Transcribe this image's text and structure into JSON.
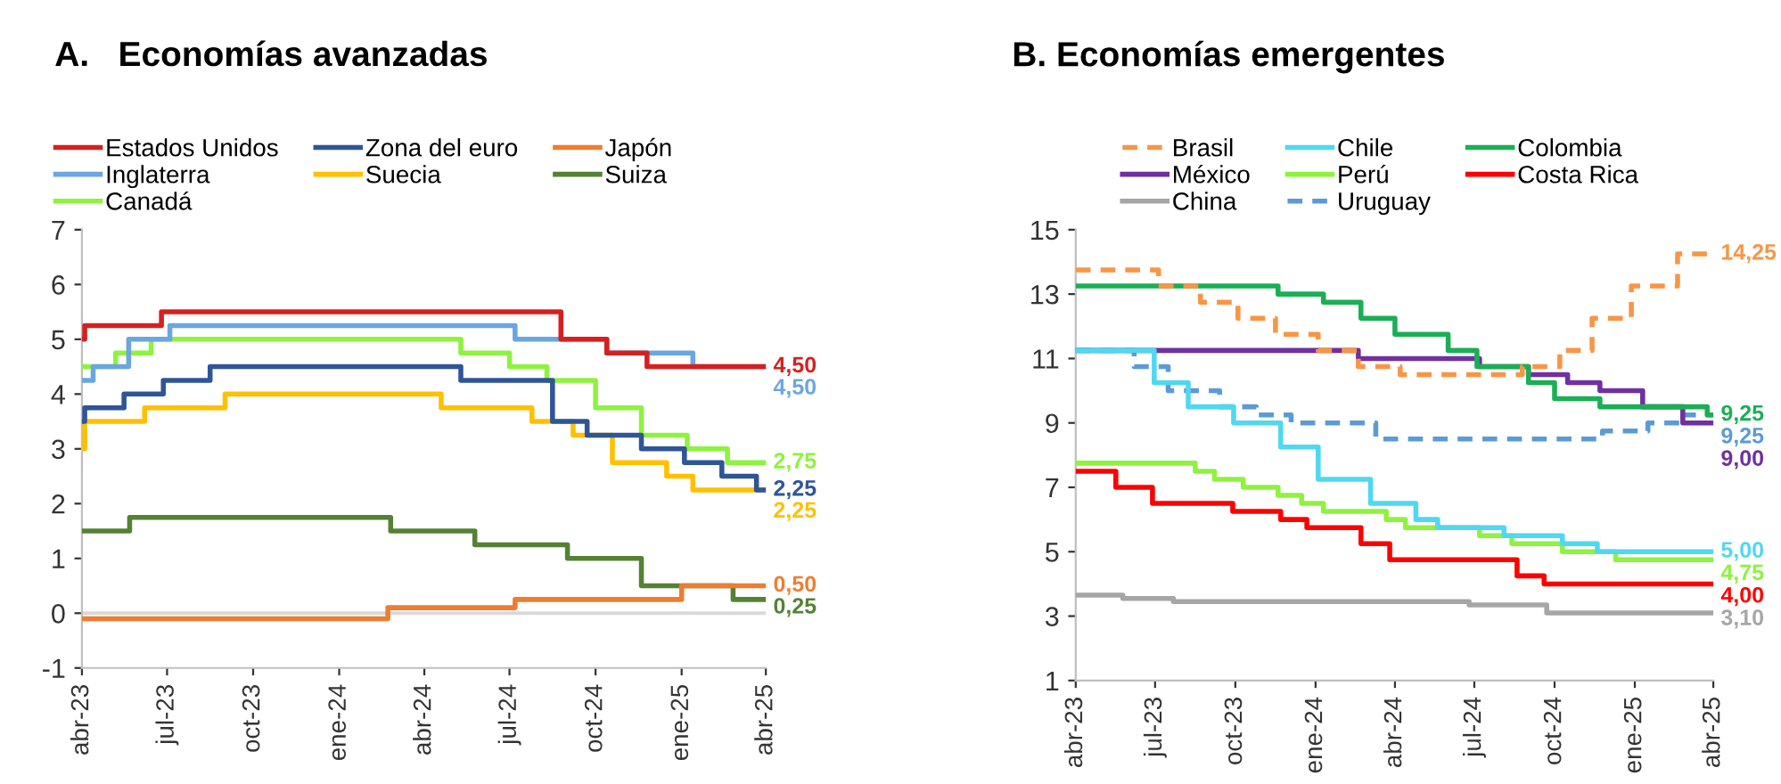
{
  "chart_data": [
    {
      "type": "step",
      "title": "A.   Economías avanzadas",
      "legend": "top",
      "grid": false,
      "ylim": [
        -1,
        7
      ],
      "yticks": [
        -1,
        0,
        1,
        2,
        3,
        4,
        5,
        6,
        7
      ],
      "xlim": [
        "2023-04-01",
        "2025-04-01"
      ],
      "xticks": [
        {
          "value": "2023-04-01",
          "label": "abr-23"
        },
        {
          "value": "2023-07-01",
          "label": "jul-23"
        },
        {
          "value": "2023-10-01",
          "label": "oct-23"
        },
        {
          "value": "2024-01-01",
          "label": "ene-24"
        },
        {
          "value": "2024-04-01",
          "label": "abr-24"
        },
        {
          "value": "2024-07-01",
          "label": "jul-24"
        },
        {
          "value": "2024-10-01",
          "label": "oct-24"
        },
        {
          "value": "2025-01-01",
          "label": "ene-25"
        },
        {
          "value": "2025-04-01",
          "label": "abr-25"
        }
      ],
      "ref_lines": [
        {
          "axis": "y",
          "value": 0,
          "color": "#d9d9d9"
        }
      ],
      "series": [
        {
          "name": "Estados Unidos",
          "color": "#d62020",
          "x": [
            "2023-04-01",
            "2023-04-04",
            "2023-06-25",
            "2024-08-25",
            "2024-10-13",
            "2024-11-25",
            "2025-04-01"
          ],
          "values": [
            5.0,
            5.25,
            5.5,
            5.0,
            4.75,
            4.5,
            4.5
          ],
          "value_labels": [
            null,
            null,
            null,
            null,
            null,
            null,
            "4,50"
          ]
        },
        {
          "name": "Zona del euro",
          "color": "#2f5597",
          "x": [
            "2023-04-01",
            "2023-04-04",
            "2023-05-16",
            "2023-06-27",
            "2023-08-16",
            "2024-05-10",
            "2024-08-16",
            "2024-09-22",
            "2024-11-19",
            "2025-01-04",
            "2025-02-13",
            "2025-03-22",
            "2025-04-01"
          ],
          "values": [
            3.5,
            3.75,
            4.0,
            4.25,
            4.5,
            4.25,
            3.5,
            3.25,
            3.0,
            2.75,
            2.5,
            2.25,
            2.25
          ],
          "value_labels": [
            null,
            null,
            null,
            null,
            null,
            null,
            null,
            null,
            null,
            null,
            null,
            null,
            "2,25"
          ]
        },
        {
          "name": "Japón",
          "color": "#ed7d31",
          "x": [
            "2023-04-01",
            "2024-02-22",
            "2024-07-07",
            "2025-01-01",
            "2025-04-01"
          ],
          "values": [
            -0.1,
            0.1,
            0.25,
            0.5,
            0.5
          ],
          "value_labels": [
            null,
            null,
            null,
            null,
            "0,50"
          ]
        },
        {
          "name": "Inglaterra",
          "color": "#6aa6e0",
          "x": [
            "2023-04-01",
            "2023-04-13",
            "2023-05-21",
            "2023-07-04",
            "2024-07-07",
            "2024-10-13",
            "2025-01-13",
            "2025-04-01"
          ],
          "values": [
            4.25,
            4.5,
            5.0,
            5.25,
            5.0,
            4.75,
            4.5,
            4.5
          ],
          "value_labels": [
            null,
            null,
            null,
            null,
            null,
            null,
            null,
            "4,50"
          ]
        },
        {
          "name": "Suecia",
          "color": "#ffc000",
          "x": [
            "2023-04-01",
            "2023-04-04",
            "2023-06-07",
            "2023-09-01",
            "2024-04-19",
            "2024-07-25",
            "2024-09-07",
            "2024-10-19",
            "2024-12-16",
            "2025-01-13",
            "2025-04-01"
          ],
          "values": [
            3.0,
            3.5,
            3.75,
            4.0,
            3.75,
            3.5,
            3.25,
            2.75,
            2.5,
            2.25,
            2.25
          ],
          "value_labels": [
            null,
            null,
            null,
            null,
            null,
            null,
            null,
            null,
            null,
            null,
            "2,25"
          ]
        },
        {
          "name": "Suiza",
          "color": "#548235",
          "x": [
            "2023-04-01",
            "2023-05-22",
            "2024-02-25",
            "2024-05-25",
            "2024-09-01",
            "2024-11-19",
            "2025-02-25",
            "2025-04-01"
          ],
          "values": [
            1.5,
            1.75,
            1.5,
            1.25,
            1.0,
            0.5,
            0.25,
            0.25
          ],
          "value_labels": [
            null,
            null,
            null,
            null,
            null,
            null,
            null,
            "0,25"
          ]
        },
        {
          "name": "Canadá",
          "color": "#8ef23f",
          "x": [
            "2023-04-01",
            "2023-05-07",
            "2023-06-14",
            "2024-05-10",
            "2024-07-01",
            "2024-08-10",
            "2024-10-01",
            "2024-11-19",
            "2025-01-07",
            "2025-02-19",
            "2025-04-01"
          ],
          "values": [
            4.5,
            4.75,
            5.0,
            4.75,
            4.5,
            4.25,
            3.75,
            3.25,
            3.0,
            2.75,
            2.75
          ],
          "value_labels": [
            null,
            null,
            null,
            null,
            null,
            null,
            null,
            null,
            null,
            null,
            "2,75"
          ]
        }
      ]
    },
    {
      "type": "step",
      "title": "B. Economías emergentes",
      "legend": "top",
      "grid": false,
      "ylim": [
        1,
        15
      ],
      "yticks": [
        1,
        3,
        5,
        7,
        9,
        11,
        13,
        15
      ],
      "xlim": [
        "2023-04-01",
        "2025-04-01"
      ],
      "xticks": [
        {
          "value": "2023-04-01",
          "label": "abr-23"
        },
        {
          "value": "2023-07-01",
          "label": "jul-23"
        },
        {
          "value": "2023-10-01",
          "label": "oct-23"
        },
        {
          "value": "2024-01-01",
          "label": "ene-24"
        },
        {
          "value": "2024-04-01",
          "label": "abr-24"
        },
        {
          "value": "2024-07-01",
          "label": "jul-24"
        },
        {
          "value": "2024-10-01",
          "label": "oct-24"
        },
        {
          "value": "2025-01-01",
          "label": "ene-25"
        },
        {
          "value": "2025-04-01",
          "label": "abr-25"
        }
      ],
      "series": [
        {
          "name": "Brasil",
          "color": "#f79646",
          "line_style": "dashed",
          "x": [
            "2023-04-01",
            "2023-07-05",
            "2023-08-22",
            "2023-10-04",
            "2023-11-16",
            "2024-01-04",
            "2024-02-19",
            "2024-04-07",
            "2024-08-25",
            "2024-10-07",
            "2024-11-13",
            "2024-12-28",
            "2025-02-19",
            "2025-04-01"
          ],
          "values": [
            13.75,
            13.25,
            12.75,
            12.25,
            11.75,
            11.25,
            10.75,
            10.5,
            10.75,
            11.25,
            12.25,
            13.25,
            14.25,
            14.25
          ],
          "value_labels": [
            null,
            null,
            null,
            null,
            null,
            null,
            null,
            null,
            null,
            null,
            null,
            null,
            null,
            "14,25"
          ]
        },
        {
          "name": "Chile",
          "color": "#4fd8f0",
          "x": [
            "2023-04-01",
            "2023-06-30",
            "2023-08-08",
            "2023-09-29",
            "2023-11-22",
            "2024-01-04",
            "2024-03-04",
            "2024-04-25",
            "2024-05-20",
            "2024-08-04",
            "2024-10-10",
            "2024-11-19",
            "2025-04-01"
          ],
          "values": [
            11.25,
            10.25,
            9.5,
            9.0,
            8.25,
            7.25,
            6.5,
            6.0,
            5.75,
            5.5,
            5.25,
            5.0,
            5.0
          ],
          "value_labels": [
            null,
            null,
            null,
            null,
            null,
            null,
            null,
            null,
            null,
            null,
            null,
            null,
            "5,00"
          ]
        },
        {
          "name": "Colombia",
          "color": "#1aaf54",
          "x": [
            "2023-04-01",
            "2023-11-19",
            "2024-01-10",
            "2024-02-22",
            "2024-04-01",
            "2024-06-01",
            "2024-07-04",
            "2024-09-01",
            "2024-10-01",
            "2024-11-22",
            "2025-03-25",
            "2025-04-01"
          ],
          "values": [
            13.25,
            13.0,
            12.75,
            12.25,
            11.75,
            11.25,
            10.75,
            10.25,
            9.75,
            9.5,
            9.25,
            9.25
          ],
          "value_labels": [
            null,
            null,
            null,
            null,
            null,
            null,
            null,
            null,
            null,
            null,
            null,
            "9,25"
          ]
        },
        {
          "name": "México",
          "color": "#7030a0",
          "x": [
            "2023-04-01",
            "2024-02-19",
            "2024-07-07",
            "2024-09-01",
            "2024-10-16",
            "2024-11-22",
            "2025-01-10",
            "2025-02-25",
            "2025-04-01"
          ],
          "values": [
            11.25,
            11.0,
            10.75,
            10.5,
            10.25,
            10.0,
            9.5,
            9.0,
            9.0
          ],
          "value_labels": [
            null,
            null,
            null,
            null,
            null,
            null,
            null,
            null,
            "9,00"
          ]
        },
        {
          "name": "Perú",
          "color": "#8ef23f",
          "x": [
            "2023-04-01",
            "2023-08-16",
            "2023-09-07",
            "2023-10-10",
            "2023-11-19",
            "2023-12-16",
            "2024-01-10",
            "2024-03-22",
            "2024-04-13",
            "2024-07-07",
            "2024-08-13",
            "2024-10-10",
            "2024-12-10",
            "2025-04-01"
          ],
          "values": [
            7.75,
            7.5,
            7.25,
            7.0,
            6.75,
            6.5,
            6.25,
            6.0,
            5.75,
            5.5,
            5.25,
            5.0,
            4.75,
            4.75
          ],
          "value_labels": [
            null,
            null,
            null,
            null,
            null,
            null,
            null,
            null,
            null,
            null,
            null,
            null,
            null,
            "4,75"
          ]
        },
        {
          "name": "Costa Rica",
          "color": "#ff0000",
          "x": [
            "2023-04-01",
            "2023-05-17",
            "2023-06-28",
            "2023-09-28",
            "2023-11-22",
            "2023-12-22",
            "2024-02-22",
            "2024-03-26",
            "2024-08-19",
            "2024-09-19",
            "2025-04-01"
          ],
          "values": [
            7.5,
            7.0,
            6.5,
            6.25,
            6.0,
            5.75,
            5.25,
            4.75,
            4.25,
            4.0,
            4.0
          ],
          "value_labels": [
            null,
            null,
            null,
            null,
            null,
            null,
            null,
            null,
            null,
            null,
            "4,00"
          ]
        },
        {
          "name": "China",
          "color": "#a6a6a6",
          "x": [
            "2023-04-01",
            "2023-05-25",
            "2023-07-22",
            "2024-06-25",
            "2024-09-22",
            "2025-04-01"
          ],
          "values": [
            3.65,
            3.55,
            3.45,
            3.35,
            3.1,
            3.1
          ],
          "value_labels": [
            null,
            null,
            null,
            null,
            null,
            "3,10"
          ]
        },
        {
          "name": "Uruguay",
          "color": "#5b9bd5",
          "line_style": "dashed",
          "x": [
            "2023-04-01",
            "2023-06-07",
            "2023-07-16",
            "2023-09-13",
            "2023-10-25",
            "2023-12-04",
            "2024-03-10",
            "2024-11-25",
            "2025-01-16",
            "2025-02-25",
            "2025-04-01"
          ],
          "values": [
            11.25,
            10.75,
            10.0,
            9.5,
            9.25,
            9.0,
            8.5,
            8.75,
            9.0,
            9.25,
            9.25
          ],
          "value_labels": [
            null,
            null,
            null,
            null,
            null,
            null,
            null,
            null,
            null,
            null,
            "9,25"
          ]
        }
      ]
    }
  ]
}
